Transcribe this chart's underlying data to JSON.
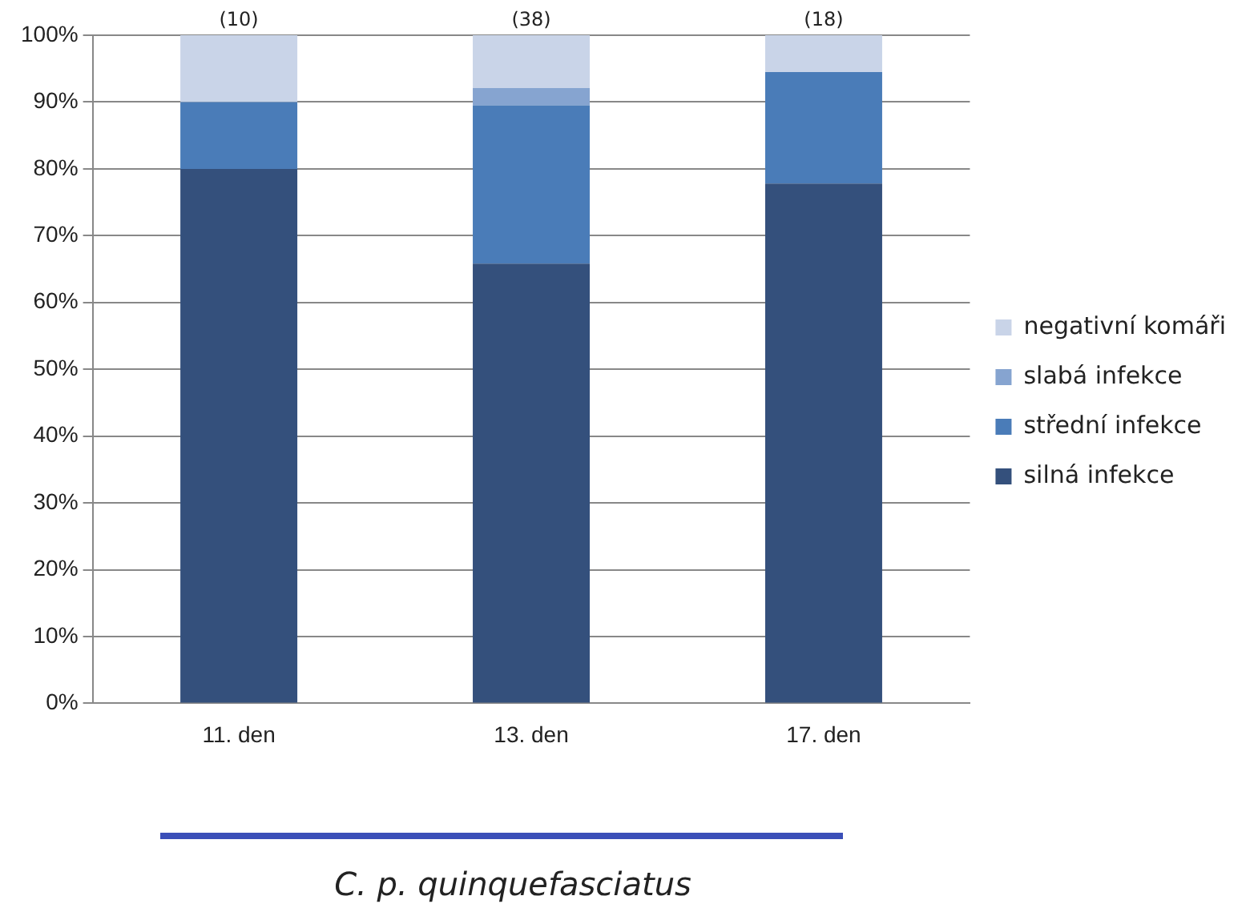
{
  "chart_data": {
    "type": "bar",
    "stacked": true,
    "categories": [
      "11. den",
      "13. den",
      "17. den"
    ],
    "series": [
      {
        "name": "silná infekce",
        "color": "#34507c",
        "values": [
          80,
          65.8,
          77.8
        ]
      },
      {
        "name": "střední infekce",
        "color": "#4a7cb8",
        "values": [
          10,
          23.7,
          16.7
        ]
      },
      {
        "name": "slabá infekce",
        "color": "#86a4d0",
        "values": [
          0,
          2.6,
          0
        ]
      },
      {
        "name": "negativní komáři",
        "color": "#c9d4e8",
        "values": [
          10,
          7.9,
          5.6
        ]
      }
    ],
    "ylim": [
      0,
      100
    ],
    "yticks": [
      {
        "value": 0,
        "label": "0%"
      },
      {
        "value": 10,
        "label": "10%"
      },
      {
        "value": 20,
        "label": "20%"
      },
      {
        "value": 30,
        "label": "30%"
      },
      {
        "value": 40,
        "label": "40%"
      },
      {
        "value": 50,
        "label": "50%"
      },
      {
        "value": 60,
        "label": "60%"
      },
      {
        "value": 70,
        "label": "70%"
      },
      {
        "value": 80,
        "label": "80%"
      },
      {
        "value": 90,
        "label": "90%"
      },
      {
        "value": 100,
        "label": "100%"
      }
    ],
    "grid": "y",
    "legend": "right",
    "annotations": [
      {
        "text": "(10)",
        "x": "11. den",
        "y": 100
      },
      {
        "text": "(38)",
        "x": "13. den",
        "y": 100
      },
      {
        "text": "(18)",
        "x": "17. den",
        "y": 100
      },
      "C. p. quinquefasciatus"
    ]
  }
}
